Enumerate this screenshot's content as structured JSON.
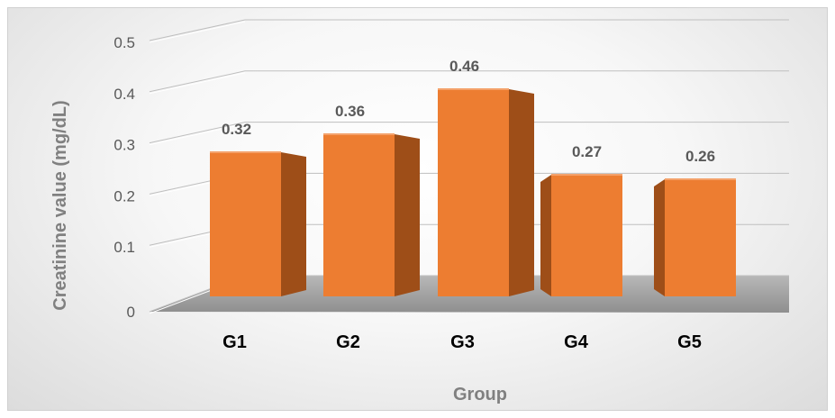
{
  "chart_data": {
    "type": "bar",
    "style": "3d-column",
    "categories": [
      "G1",
      "G2",
      "G3",
      "G4",
      "G5"
    ],
    "values": [
      0.32,
      0.36,
      0.46,
      0.27,
      0.26
    ],
    "data_labels": [
      "0.32",
      "0.36",
      "0.46",
      "0.27",
      "0.26"
    ],
    "xlabel": "Group",
    "ylabel": "Creatinine value (mg/dL)",
    "ylim": [
      0,
      0.5
    ],
    "yticks": [
      0,
      0.1,
      0.2,
      0.3,
      0.4,
      0.5
    ],
    "ytick_labels": [
      "0",
      "0.1",
      "0.2",
      "0.3",
      "0.4",
      "0.5"
    ],
    "grid": true,
    "legend": "none",
    "colors": {
      "bar_front": "#ED7D31",
      "bar_side": "#9E4E18",
      "floor": "#A6A6A6",
      "gridline": "#BFBFBF"
    }
  }
}
